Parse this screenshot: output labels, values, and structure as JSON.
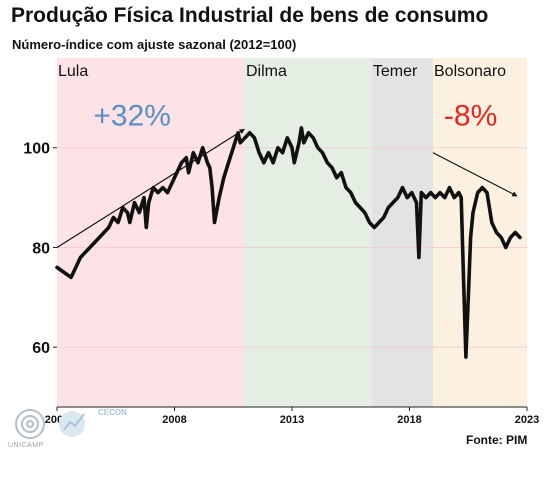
{
  "header": {
    "title": "Produção Física Industrial de bens de consumo",
    "subtitle": "Número-índice com ajuste sazonal (2012=100)"
  },
  "footer": {
    "source": "Fonte: PIM",
    "logo_left_text": "UNICAMP",
    "logo_right_text": "CECON"
  },
  "chart_data": {
    "type": "line",
    "xlim": [
      2003,
      2023
    ],
    "ylim": [
      48,
      118
    ],
    "x_ticks": [
      2003,
      2008,
      2013,
      2018,
      2023
    ],
    "y_ticks": [
      60,
      80,
      100
    ],
    "grid": true,
    "periods": [
      {
        "name": "Lula",
        "start": 2003,
        "end": 2011,
        "color": "#fde3e6"
      },
      {
        "name": "Dilma",
        "start": 2011,
        "end": 2016.4,
        "color": "#e4eee3"
      },
      {
        "name": "Temer",
        "start": 2016.4,
        "end": 2019,
        "color": "#e3e3e3"
      },
      {
        "name": "Bolsonaro",
        "start": 2019,
        "end": 2023,
        "color": "#fcf1e0"
      }
    ],
    "annotations": [
      {
        "text": "+32%",
        "color": "#5b8ec4",
        "x": 2006.2,
        "y": 104.5
      },
      {
        "text": "-8%",
        "color": "#e8271e",
        "x": 2020.6,
        "y": 104.5
      }
    ],
    "trend_arrows": [
      {
        "x1": 2003,
        "y1": 80,
        "x2": 2010.9,
        "y2": 103.5
      },
      {
        "x1": 2019,
        "y1": 99,
        "x2": 2022.5,
        "y2": 90.5
      }
    ],
    "series": [
      {
        "values": [
          [
            2003.0,
            76
          ],
          [
            2003.3,
            75
          ],
          [
            2003.6,
            74
          ],
          [
            2003.8,
            76
          ],
          [
            2004.0,
            78
          ],
          [
            2004.2,
            79
          ],
          [
            2004.4,
            80
          ],
          [
            2004.6,
            81
          ],
          [
            2004.8,
            82
          ],
          [
            2005.0,
            83
          ],
          [
            2005.2,
            84
          ],
          [
            2005.4,
            86
          ],
          [
            2005.6,
            85
          ],
          [
            2005.8,
            88
          ],
          [
            2006.0,
            87
          ],
          [
            2006.1,
            85
          ],
          [
            2006.3,
            89
          ],
          [
            2006.5,
            87
          ],
          [
            2006.7,
            90
          ],
          [
            2006.8,
            84
          ],
          [
            2006.9,
            89
          ],
          [
            2007.1,
            92
          ],
          [
            2007.3,
            91
          ],
          [
            2007.5,
            92
          ],
          [
            2007.7,
            91
          ],
          [
            2007.9,
            93
          ],
          [
            2008.1,
            95
          ],
          [
            2008.3,
            97
          ],
          [
            2008.5,
            98
          ],
          [
            2008.6,
            95
          ],
          [
            2008.8,
            99
          ],
          [
            2009.0,
            97
          ],
          [
            2009.2,
            100
          ],
          [
            2009.4,
            97
          ],
          [
            2009.5,
            96
          ],
          [
            2009.6,
            92
          ],
          [
            2009.7,
            85
          ],
          [
            2009.9,
            90
          ],
          [
            2010.1,
            94
          ],
          [
            2010.3,
            97
          ],
          [
            2010.5,
            100
          ],
          [
            2010.7,
            103
          ],
          [
            2010.8,
            101
          ],
          [
            2011.0,
            102
          ],
          [
            2011.2,
            103
          ],
          [
            2011.4,
            102
          ],
          [
            2011.6,
            99
          ],
          [
            2011.8,
            97
          ],
          [
            2012.0,
            99
          ],
          [
            2012.2,
            97
          ],
          [
            2012.4,
            100
          ],
          [
            2012.6,
            99
          ],
          [
            2012.8,
            102
          ],
          [
            2013.0,
            100
          ],
          [
            2013.1,
            97
          ],
          [
            2013.3,
            101
          ],
          [
            2013.4,
            104
          ],
          [
            2013.5,
            101
          ],
          [
            2013.7,
            103
          ],
          [
            2013.9,
            102
          ],
          [
            2014.1,
            100
          ],
          [
            2014.3,
            99
          ],
          [
            2014.5,
            97
          ],
          [
            2014.7,
            96
          ],
          [
            2014.9,
            94
          ],
          [
            2015.1,
            95
          ],
          [
            2015.3,
            92
          ],
          [
            2015.5,
            91
          ],
          [
            2015.7,
            89
          ],
          [
            2015.9,
            88
          ],
          [
            2016.1,
            87
          ],
          [
            2016.3,
            85
          ],
          [
            2016.5,
            84
          ],
          [
            2016.7,
            85
          ],
          [
            2016.9,
            86
          ],
          [
            2017.1,
            88
          ],
          [
            2017.3,
            89
          ],
          [
            2017.5,
            90
          ],
          [
            2017.7,
            92
          ],
          [
            2017.9,
            90
          ],
          [
            2018.1,
            91
          ],
          [
            2018.3,
            89
          ],
          [
            2018.4,
            78
          ],
          [
            2018.5,
            91
          ],
          [
            2018.7,
            90
          ],
          [
            2018.9,
            91
          ],
          [
            2019.1,
            90
          ],
          [
            2019.3,
            91
          ],
          [
            2019.5,
            90
          ],
          [
            2019.7,
            92
          ],
          [
            2019.9,
            90
          ],
          [
            2020.1,
            91
          ],
          [
            2020.2,
            90
          ],
          [
            2020.3,
            74
          ],
          [
            2020.4,
            58
          ],
          [
            2020.5,
            70
          ],
          [
            2020.6,
            82
          ],
          [
            2020.7,
            87
          ],
          [
            2020.9,
            91
          ],
          [
            2021.1,
            92
          ],
          [
            2021.3,
            91
          ],
          [
            2021.5,
            85
          ],
          [
            2021.7,
            83
          ],
          [
            2021.9,
            82
          ],
          [
            2022.1,
            80
          ],
          [
            2022.3,
            82
          ],
          [
            2022.5,
            83
          ],
          [
            2022.7,
            82
          ]
        ]
      }
    ]
  }
}
